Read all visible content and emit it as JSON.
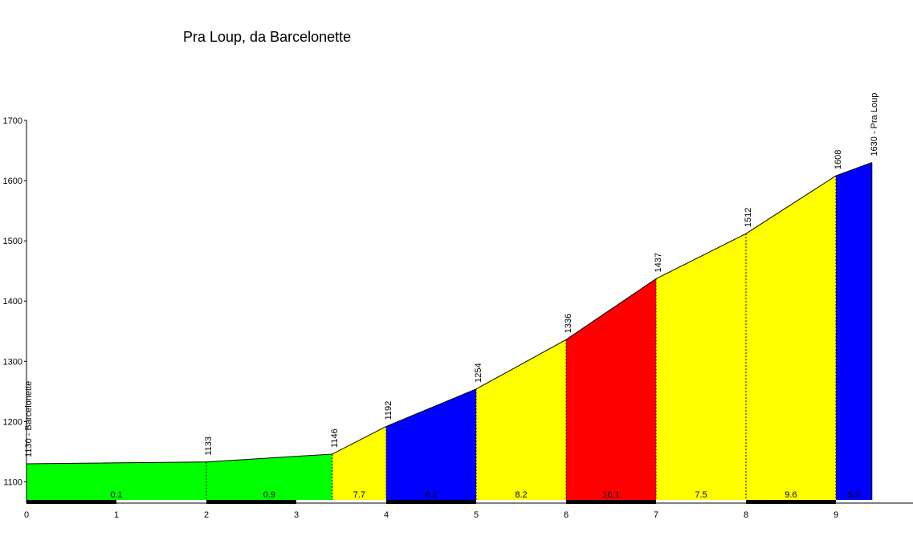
{
  "chart_data": {
    "type": "area",
    "title": "Pra Loup, da Barcelonette",
    "xlabel": "",
    "ylabel": "",
    "xlim": [
      0,
      9.4
    ],
    "ylim": [
      1070,
      1700
    ],
    "x_ticks": [
      "0",
      "1",
      "2",
      "3",
      "4",
      "5",
      "6",
      "7",
      "8",
      "9"
    ],
    "y_ticks": [
      "1100",
      "1200",
      "1300",
      "1400",
      "1500",
      "1600",
      "1700"
    ],
    "points": [
      {
        "km": 0,
        "alt": 1130,
        "label": "1130 - Barcelonette"
      },
      {
        "km": 2,
        "alt": 1133,
        "label": "1133"
      },
      {
        "km": 3.4,
        "alt": 1146,
        "label": "1146"
      },
      {
        "km": 4,
        "alt": 1192,
        "label": "1192"
      },
      {
        "km": 5,
        "alt": 1254,
        "label": "1254"
      },
      {
        "km": 6,
        "alt": 1336,
        "label": "1336"
      },
      {
        "km": 7,
        "alt": 1437,
        "label": "1437"
      },
      {
        "km": 8,
        "alt": 1512,
        "label": "1512"
      },
      {
        "km": 9,
        "alt": 1608,
        "label": "1608"
      },
      {
        "km": 9.4,
        "alt": 1630,
        "label": "1630 - Pra Loup"
      }
    ],
    "segments": [
      {
        "from": 0,
        "to": 3.4,
        "gradient": "",
        "color": "#00ff00"
      },
      {
        "from": 3.4,
        "to": 4,
        "gradient": "7.7",
        "color": "#ffff00"
      },
      {
        "from": 4,
        "to": 5,
        "gradient": "6.2",
        "color": "#0000ff"
      },
      {
        "from": 5,
        "to": 6,
        "gradient": "8.2",
        "color": "#ffff00"
      },
      {
        "from": 6,
        "to": 7,
        "gradient": "10.1",
        "color": "#ff0000"
      },
      {
        "from": 7,
        "to": 8,
        "gradient": "7.5",
        "color": "#ffff00"
      },
      {
        "from": 8,
        "to": 9,
        "gradient": "9.6",
        "color": "#ffff00"
      },
      {
        "from": 9,
        "to": 9.4,
        "gradient": "5.5",
        "color": "#0000ff"
      }
    ],
    "km_gradients": [
      {
        "from": 0,
        "to": 2,
        "gradient": "0.1"
      },
      {
        "from": 2,
        "to": 3.4,
        "gradient": "0.9"
      }
    ],
    "grid": false,
    "legend": "none"
  }
}
